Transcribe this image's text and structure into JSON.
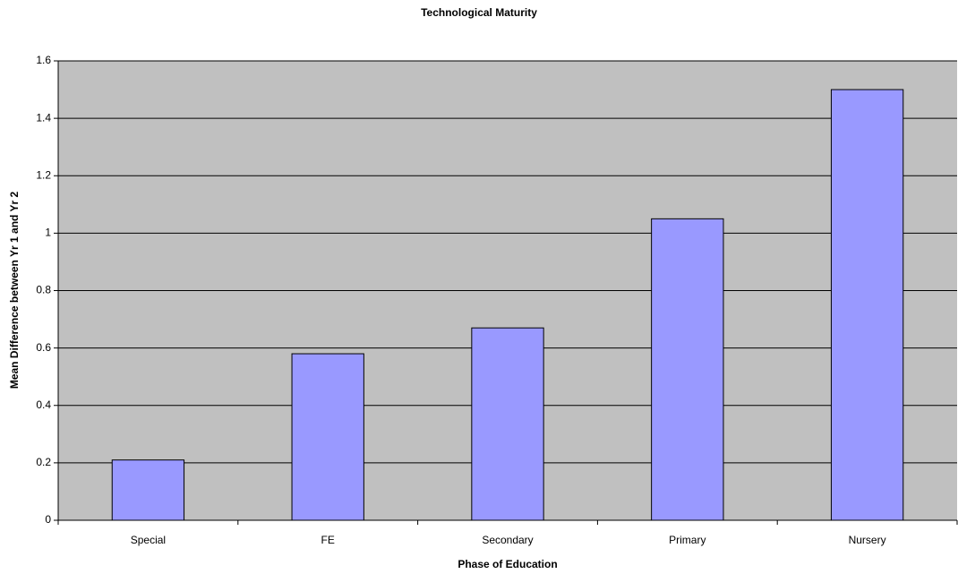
{
  "chart_data": {
    "type": "bar",
    "title": "Technological Maturity",
    "x_label": "Phase of Education",
    "y_label": "Mean Difference between Yr 1 and Yr 2",
    "categories": [
      "Special",
      "FE",
      "Secondary",
      "Primary",
      "Nursery"
    ],
    "values": [
      0.21,
      0.58,
      0.67,
      1.05,
      1.5
    ],
    "color": "#9999ff",
    "ylim": [
      0,
      1.6
    ],
    "yticks": [
      0,
      0.2,
      0.4,
      0.6,
      0.8,
      1,
      1.2,
      1.4,
      1.6
    ],
    "grid": true
  }
}
